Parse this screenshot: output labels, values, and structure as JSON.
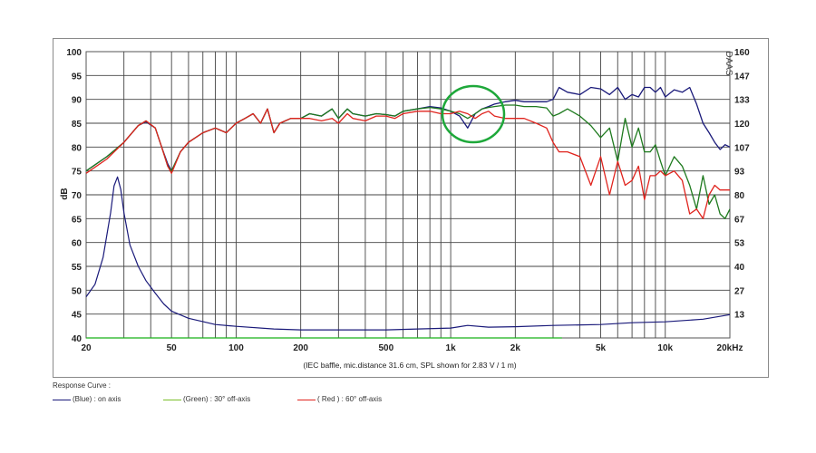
{
  "chart_data": {
    "type": "line",
    "x_scale": "log",
    "xlim": [
      20,
      20000
    ],
    "ylim": [
      40,
      100
    ],
    "ylim_right": [
      0,
      160
    ],
    "grid": true,
    "ylabel": "dB",
    "x_tick_labels": [
      {
        "v": 20,
        "t": "20"
      },
      {
        "v": 50,
        "t": "50"
      },
      {
        "v": 100,
        "t": "100"
      },
      {
        "v": 200,
        "t": "200"
      },
      {
        "v": 500,
        "t": "500"
      },
      {
        "v": 1000,
        "t": "1k"
      },
      {
        "v": 2000,
        "t": "2k"
      },
      {
        "v": 5000,
        "t": "5k"
      },
      {
        "v": 10000,
        "t": "10k"
      },
      {
        "v": 20000,
        "t": "20kHz"
      }
    ],
    "y_ticks": [
      40,
      45,
      50,
      55,
      60,
      65,
      70,
      75,
      80,
      85,
      90,
      95,
      100
    ],
    "y_right_ticks": [
      "",
      "13",
      "27",
      "40",
      "53",
      "67",
      "80",
      "93",
      "107",
      "120",
      "133",
      "147",
      "160"
    ],
    "footnote": "(IEC baffle, mic.distance 31.6 cm, SPL shown for 2.83 V / 1 m)",
    "side_label": "DAAS",
    "series": [
      {
        "name": "on axis",
        "color": "#1a1a7a",
        "x": [
          20,
          25,
          30,
          35,
          38,
          42,
          45,
          48,
          50,
          55,
          60,
          70,
          80,
          90,
          100,
          110,
          120,
          130,
          140,
          150,
          160,
          180,
          200,
          220,
          250,
          280,
          300,
          330,
          350,
          400,
          450,
          500,
          550,
          600,
          700,
          800,
          900,
          1000,
          1100,
          1200,
          1300,
          1400,
          1500,
          1600,
          1800,
          2000,
          2200,
          2500,
          2800,
          3000,
          3200,
          3500,
          4000,
          4500,
          5000,
          5500,
          6000,
          6500,
          7000,
          7500,
          8000,
          8500,
          9000,
          9500,
          10000,
          11000,
          12000,
          13000,
          14000,
          15000,
          16000,
          17000,
          18000,
          19000,
          20000
        ],
        "y": [
          75,
          78,
          81,
          84.5,
          85.3,
          84,
          80,
          76.5,
          75,
          79,
          81,
          83,
          84,
          83,
          85,
          86,
          87,
          85,
          88,
          83,
          85,
          86,
          86,
          87,
          86.5,
          88,
          86,
          88,
          87,
          86.5,
          87,
          86.8,
          86.5,
          87.5,
          88,
          88.5,
          88.2,
          87.5,
          86.5,
          84,
          87,
          88,
          88.5,
          89,
          89.5,
          89.8,
          89.5,
          89.5,
          89.5,
          90,
          92.5,
          91.5,
          91,
          92.5,
          92.2,
          91,
          92.5,
          90,
          91,
          90.5,
          92.5,
          92.5,
          91.5,
          92.5,
          90.5,
          92,
          91.5,
          92.5,
          89,
          85,
          83,
          81,
          79.5,
          80.5,
          80
        ]
      },
      {
        "name": "30° off-axis",
        "color": "#1e7a1e",
        "x": [
          20,
          25,
          30,
          35,
          38,
          42,
          45,
          48,
          50,
          55,
          60,
          70,
          80,
          90,
          100,
          110,
          120,
          130,
          140,
          150,
          160,
          180,
          200,
          220,
          250,
          280,
          300,
          330,
          350,
          400,
          450,
          500,
          550,
          600,
          700,
          800,
          900,
          1000,
          1100,
          1200,
          1300,
          1400,
          1500,
          1600,
          1800,
          2000,
          2200,
          2500,
          2800,
          3000,
          3200,
          3500,
          4000,
          4500,
          5000,
          5500,
          6000,
          6500,
          7000,
          7500,
          8000,
          8500,
          9000,
          9500,
          10000,
          11000,
          12000,
          13000,
          14000,
          15000,
          16000,
          17000,
          18000,
          19000,
          20000
        ],
        "y": [
          75,
          78,
          81,
          84.5,
          85.5,
          84,
          80,
          76,
          75,
          79,
          81,
          83,
          84,
          83,
          85,
          86,
          87,
          85,
          88,
          83,
          85,
          86,
          86,
          87,
          86.5,
          88,
          86,
          88,
          87,
          86.5,
          87,
          86.8,
          86.5,
          87.5,
          88,
          88.3,
          88,
          87.5,
          87,
          86,
          87,
          88,
          88.3,
          88.5,
          88.8,
          88.8,
          88.5,
          88.5,
          88.2,
          86.5,
          87,
          88,
          86.5,
          84.5,
          82,
          84,
          77,
          86,
          80,
          84,
          79,
          79,
          80.5,
          77,
          74,
          78,
          76,
          72,
          67,
          74,
          68,
          70,
          66,
          65,
          67
        ]
      },
      {
        "name": "60° off-axis",
        "color": "#e0241e",
        "x": [
          20,
          25,
          30,
          35,
          38,
          42,
          45,
          48,
          50,
          55,
          60,
          70,
          80,
          90,
          100,
          110,
          120,
          130,
          140,
          150,
          160,
          180,
          200,
          220,
          250,
          280,
          300,
          330,
          350,
          400,
          450,
          500,
          550,
          600,
          700,
          800,
          900,
          1000,
          1100,
          1200,
          1300,
          1400,
          1500,
          1600,
          1800,
          2000,
          2200,
          2500,
          2800,
          3000,
          3200,
          3500,
          4000,
          4500,
          5000,
          5500,
          6000,
          6500,
          7000,
          7500,
          8000,
          8500,
          9000,
          9500,
          10000,
          11000,
          12000,
          13000,
          14000,
          15000,
          16000,
          17000,
          18000,
          19000,
          20000
        ],
        "y": [
          74.5,
          77.5,
          81,
          84.5,
          85.5,
          84,
          80,
          76,
          74.5,
          79,
          81,
          83,
          84,
          83,
          85,
          86,
          87,
          85,
          88,
          83,
          85,
          86,
          86,
          86,
          85.5,
          86,
          85,
          87,
          86,
          85.5,
          86.5,
          86.5,
          86,
          87,
          87.5,
          87.5,
          87,
          87,
          87.5,
          87,
          86,
          87,
          87.5,
          86.5,
          86,
          86,
          86,
          85,
          84,
          81,
          79,
          79,
          78,
          72,
          78,
          70,
          77,
          72,
          73,
          76,
          69,
          74,
          74,
          75,
          74,
          75,
          73,
          66,
          67,
          65,
          70,
          72,
          71,
          71,
          71
        ]
      },
      {
        "name": "impedance",
        "color": "#1a1a7a",
        "axis": "right",
        "x": [
          20,
          22,
          24,
          26,
          27,
          28,
          29,
          30,
          32,
          35,
          38,
          42,
          46,
          50,
          60,
          80,
          100,
          150,
          200,
          300,
          500,
          700,
          1000,
          1200,
          1500,
          2000,
          3000,
          5000,
          7000,
          10000,
          15000,
          20000
        ],
        "y": [
          23,
          30,
          45,
          70,
          85,
          90,
          83,
          70,
          52,
          40,
          32,
          25,
          19,
          15,
          11,
          7.5,
          6.5,
          5,
          4.5,
          4.5,
          4.5,
          5,
          5.5,
          7,
          6,
          6.3,
          7,
          7.5,
          8.5,
          9,
          10.5,
          13
        ]
      },
      {
        "name": "phase",
        "color": "#18b018",
        "axis": "right",
        "x": [
          20,
          3300
        ],
        "y": [
          0,
          0
        ]
      }
    ]
  },
  "legend": {
    "title": "Response Curve :",
    "items": [
      {
        "label": "(Blue)  : on axis",
        "color": "#1a1a7a"
      },
      {
        "label": "(Green) : 30° off-axis",
        "color": "#7bbf2a"
      },
      {
        "label": "( Red ) : 60° off-axis",
        "color": "#e0241e"
      }
    ]
  },
  "annotation": {
    "color": "#1ea83a"
  }
}
